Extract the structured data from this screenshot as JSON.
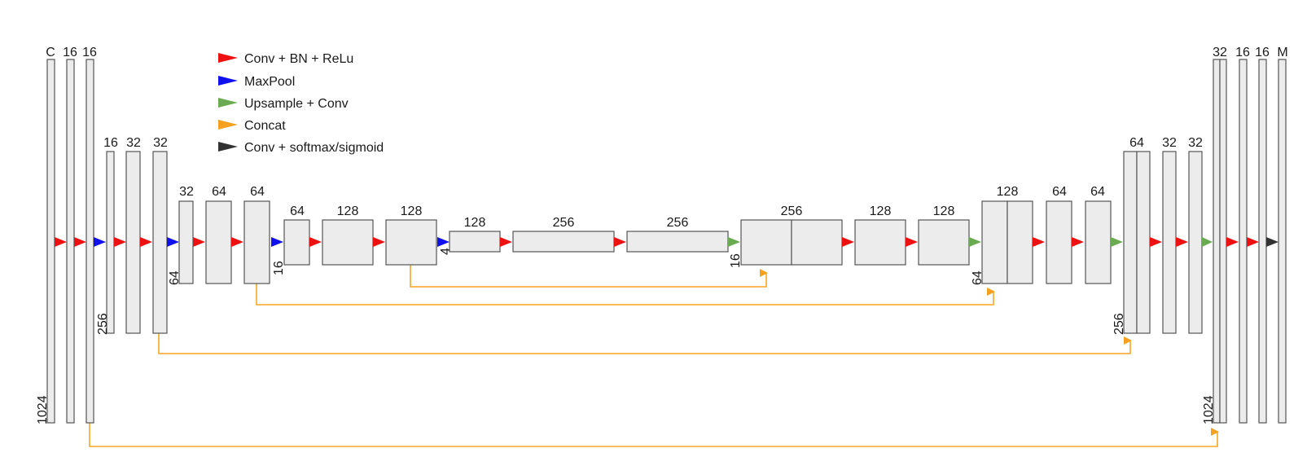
{
  "colors": {
    "conv": "#ee1111",
    "pool": "#1111ee",
    "up": "#6aaa50",
    "concat": "#f5a01e",
    "final": "#333333"
  },
  "legend": [
    {
      "label": "Conv + BN + ReLu",
      "color": "#ee1111",
      "icon": "red-arrow-icon"
    },
    {
      "label": "MaxPool",
      "color": "#1111ee",
      "icon": "blue-arrow-icon"
    },
    {
      "label": "Upsample + Conv",
      "color": "#6aaa50",
      "icon": "green-arrow-icon"
    },
    {
      "label": "Concat",
      "color": "#f5a01e",
      "icon": "orange-arrow-icon"
    },
    {
      "label": "Conv + softmax/sigmoid",
      "color": "#333333",
      "icon": "black-arrow-icon"
    }
  ],
  "channel_labels": [
    "C",
    "16",
    "16",
    "16",
    "32",
    "32",
    "32",
    "64",
    "64",
    "64",
    "128",
    "128",
    "128",
    "256",
    "256",
    "256",
    "128",
    "128",
    "128",
    "64",
    "64",
    "64",
    "32",
    "32",
    "32",
    "16",
    "16",
    "M"
  ],
  "size_labels": [
    "1024",
    "256",
    "64",
    "16",
    "4",
    "16",
    "64",
    "256",
    "1024"
  ]
}
